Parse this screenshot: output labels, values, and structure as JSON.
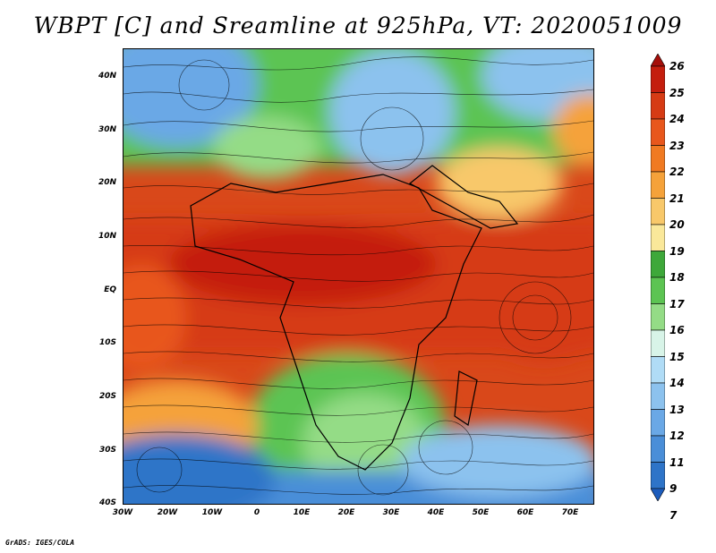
{
  "title": "WBPT [C] and Sreamline at 925hPa, VT: 2020051009",
  "footer": "GrADS: IGES/COLA",
  "map": {
    "variable": "Wet-bulb potential temperature",
    "units": "C",
    "level": "925hPa",
    "valid_time": "2020051009",
    "lon_range": [
      -30,
      75
    ],
    "lat_range": [
      -40,
      45
    ],
    "lat_ticks": [
      "40N",
      "30N",
      "20N",
      "10N",
      "EQ",
      "10S",
      "20S",
      "30S",
      "40S"
    ],
    "lat_values": [
      40,
      30,
      20,
      10,
      0,
      -10,
      -20,
      -30,
      -40
    ],
    "lon_ticks": [
      "30W",
      "20W",
      "10W",
      "0",
      "10E",
      "20E",
      "30E",
      "40E",
      "50E",
      "60E",
      "70E"
    ],
    "lon_values": [
      -30,
      -20,
      -10,
      0,
      10,
      20,
      30,
      40,
      50,
      60,
      70
    ]
  },
  "colorbar": {
    "labels": [
      "26",
      "25",
      "24",
      "23",
      "22",
      "21",
      "20",
      "19",
      "18",
      "17",
      "16",
      "15",
      "14",
      "13",
      "12",
      "11",
      "9",
      "7"
    ],
    "colors": [
      "#a50f0a",
      "#c41e0e",
      "#d63b14",
      "#e8571c",
      "#f07a22",
      "#f5a23a",
      "#f8c86a",
      "#fae89a",
      "#3ea83a",
      "#5cc452",
      "#94dc86",
      "#d8f4e8",
      "#b0dcf6",
      "#8cc2ee",
      "#6aa8e6",
      "#4a8ed8",
      "#2e74c8",
      "#1c5cbc"
    ]
  }
}
